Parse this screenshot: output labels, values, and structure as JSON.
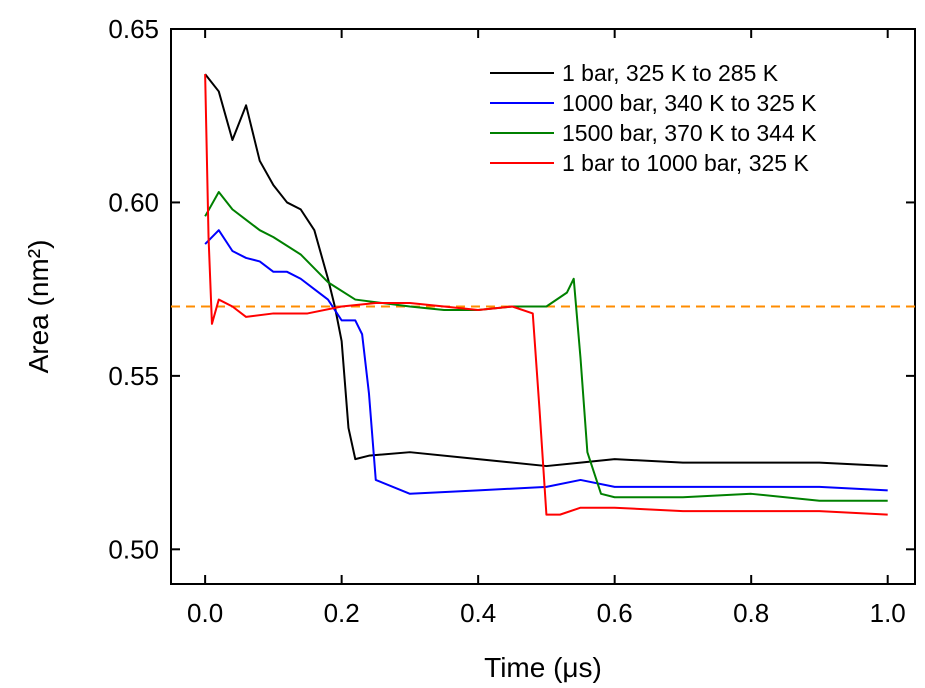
{
  "chart_data": {
    "type": "line",
    "xlabel": "Time (μs)",
    "ylabel": "Area (nm²)",
    "xlim": [
      -0.05,
      1.04
    ],
    "ylim": [
      0.49,
      0.65
    ],
    "xticks": [
      0.0,
      0.2,
      0.4,
      0.6,
      0.8,
      1.0
    ],
    "xtick_labels": [
      "0.0",
      "0.2",
      "0.4",
      "0.6",
      "0.8",
      "1.0"
    ],
    "yticks": [
      0.5,
      0.55,
      0.6,
      0.65
    ],
    "ytick_labels": [
      "0.50",
      "0.55",
      "0.60",
      "0.65"
    ],
    "legend_position": "top-right",
    "grid": false,
    "reference_line": {
      "y": 0.57,
      "color": "#ff8c00",
      "style": "dashed"
    },
    "series": [
      {
        "name": "1 bar, 325 K to 285 K",
        "color": "#000000",
        "x": [
          0.0,
          0.02,
          0.04,
          0.06,
          0.08,
          0.1,
          0.12,
          0.14,
          0.16,
          0.18,
          0.19,
          0.2,
          0.21,
          0.22,
          0.24,
          0.3,
          0.4,
          0.5,
          0.55,
          0.6,
          0.7,
          0.8,
          0.9,
          1.0
        ],
        "y": [
          0.637,
          0.632,
          0.618,
          0.628,
          0.612,
          0.605,
          0.6,
          0.598,
          0.592,
          0.578,
          0.57,
          0.56,
          0.535,
          0.526,
          0.527,
          0.528,
          0.526,
          0.524,
          0.525,
          0.526,
          0.525,
          0.525,
          0.525,
          0.524
        ]
      },
      {
        "name": "1000 bar, 340 K to 325 K",
        "color": "#0000ff",
        "x": [
          0.0,
          0.02,
          0.04,
          0.06,
          0.08,
          0.1,
          0.12,
          0.14,
          0.16,
          0.18,
          0.2,
          0.22,
          0.23,
          0.24,
          0.25,
          0.3,
          0.4,
          0.5,
          0.55,
          0.6,
          0.7,
          0.8,
          0.9,
          1.0
        ],
        "y": [
          0.588,
          0.592,
          0.586,
          0.584,
          0.583,
          0.58,
          0.58,
          0.578,
          0.575,
          0.572,
          0.566,
          0.566,
          0.562,
          0.545,
          0.52,
          0.516,
          0.517,
          0.518,
          0.52,
          0.518,
          0.518,
          0.518,
          0.518,
          0.517
        ]
      },
      {
        "name": "1500 bar, 370 K to 344 K",
        "color": "#008000",
        "x": [
          0.0,
          0.02,
          0.04,
          0.06,
          0.08,
          0.1,
          0.14,
          0.18,
          0.22,
          0.26,
          0.3,
          0.35,
          0.4,
          0.45,
          0.5,
          0.53,
          0.54,
          0.55,
          0.56,
          0.58,
          0.6,
          0.7,
          0.8,
          0.9,
          1.0
        ],
        "y": [
          0.596,
          0.603,
          0.598,
          0.595,
          0.592,
          0.59,
          0.585,
          0.577,
          0.572,
          0.571,
          0.57,
          0.569,
          0.569,
          0.57,
          0.57,
          0.574,
          0.578,
          0.555,
          0.528,
          0.516,
          0.515,
          0.515,
          0.516,
          0.514,
          0.514
        ]
      },
      {
        "name": "1 bar to 1000 bar, 325 K",
        "color": "#ff0000",
        "x": [
          0.0,
          0.005,
          0.01,
          0.02,
          0.04,
          0.06,
          0.1,
          0.15,
          0.2,
          0.25,
          0.3,
          0.35,
          0.4,
          0.45,
          0.48,
          0.49,
          0.5,
          0.52,
          0.55,
          0.6,
          0.7,
          0.8,
          0.9,
          1.0
        ],
        "y": [
          0.637,
          0.59,
          0.565,
          0.572,
          0.57,
          0.567,
          0.568,
          0.568,
          0.57,
          0.571,
          0.571,
          0.57,
          0.569,
          0.57,
          0.568,
          0.54,
          0.51,
          0.51,
          0.512,
          0.512,
          0.511,
          0.511,
          0.511,
          0.51
        ]
      }
    ]
  }
}
